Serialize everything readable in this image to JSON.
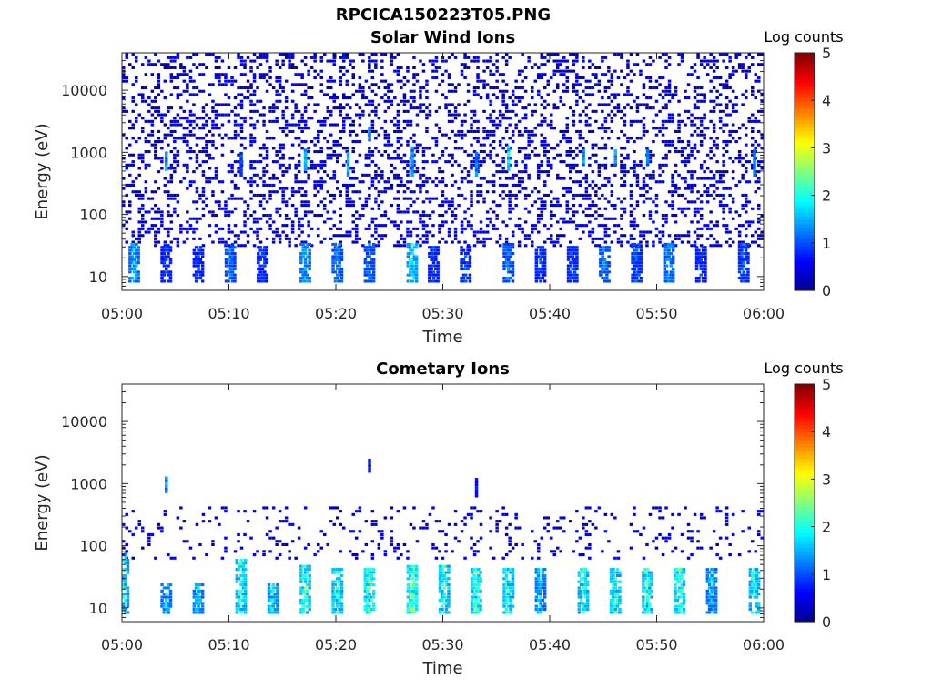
{
  "figure_title": "RPCICA150223T05.PNG",
  "colors": {
    "colormap": [
      "#00008f",
      "#0000ff",
      "#0080ff",
      "#00ffff",
      "#80ff80",
      "#ffff00",
      "#ff8000",
      "#ff0000",
      "#800000"
    ],
    "axes": "#262626",
    "background": "#ffffff"
  },
  "chart_data": [
    {
      "type": "heatmap",
      "title": "Solar Wind Ions",
      "xlabel": "Time",
      "ylabel": "Energy (eV)",
      "x_ticks": [
        "05:00",
        "05:10",
        "05:20",
        "05:30",
        "05:40",
        "05:50",
        "06:00"
      ],
      "xlim": [
        "05:00",
        "06:00"
      ],
      "y_scale": "log",
      "y_ticks": [
        10,
        100,
        1000,
        10000
      ],
      "y_tick_labels": [
        "10",
        "100",
        "1000",
        "10000"
      ],
      "ylim": [
        6,
        40000
      ],
      "colorbar": {
        "label": "Log counts",
        "range": [
          0,
          5
        ],
        "ticks": [
          "0",
          "1",
          "2",
          "3",
          "4",
          "5"
        ]
      },
      "low_energy_bursts": [
        {
          "t": "05:01",
          "e": [
            8,
            35
          ],
          "level": 1.6
        },
        {
          "t": "05:04",
          "e": [
            8,
            30
          ],
          "level": 0.8
        },
        {
          "t": "05:07",
          "e": [
            8,
            30
          ],
          "level": 0.8
        },
        {
          "t": "05:10",
          "e": [
            8,
            35
          ],
          "level": 1.2
        },
        {
          "t": "05:13",
          "e": [
            8,
            30
          ],
          "level": 0.8
        },
        {
          "t": "05:17",
          "e": [
            8,
            35
          ],
          "level": 1.6
        },
        {
          "t": "05:20",
          "e": [
            8,
            35
          ],
          "level": 1.3
        },
        {
          "t": "05:23",
          "e": [
            8,
            35
          ],
          "level": 1.2
        },
        {
          "t": "05:27",
          "e": [
            8,
            35
          ],
          "level": 2.0
        },
        {
          "t": "05:29",
          "e": [
            8,
            30
          ],
          "level": 0.8
        },
        {
          "t": "05:32",
          "e": [
            8,
            30
          ],
          "level": 0.9
        },
        {
          "t": "05:36",
          "e": [
            8,
            35
          ],
          "level": 1.2
        },
        {
          "t": "05:39",
          "e": [
            8,
            30
          ],
          "level": 0.8
        },
        {
          "t": "05:42",
          "e": [
            8,
            30
          ],
          "level": 0.9
        },
        {
          "t": "05:45",
          "e": [
            8,
            30
          ],
          "level": 1.2
        },
        {
          "t": "05:48",
          "e": [
            8,
            35
          ],
          "level": 1.0
        },
        {
          "t": "05:51",
          "e": [
            8,
            35
          ],
          "level": 1.5
        },
        {
          "t": "05:54",
          "e": [
            8,
            30
          ],
          "level": 0.8
        },
        {
          "t": "05:58",
          "e": [
            8,
            35
          ],
          "level": 1.0
        }
      ],
      "high_energy_streaks": [
        {
          "t": "05:04",
          "e": [
            500,
            1000
          ],
          "level": 1.8
        },
        {
          "t": "05:11",
          "e": [
            400,
            1000
          ],
          "level": 1.2
        },
        {
          "t": "05:17",
          "e": [
            500,
            1100
          ],
          "level": 2.0
        },
        {
          "t": "05:21",
          "e": [
            400,
            1000
          ],
          "level": 1.7
        },
        {
          "t": "05:23",
          "e": [
            1500,
            2500
          ],
          "level": 1.5
        },
        {
          "t": "05:27",
          "e": [
            400,
            1200
          ],
          "level": 1.6
        },
        {
          "t": "05:33",
          "e": [
            400,
            1000
          ],
          "level": 1.5
        },
        {
          "t": "05:36",
          "e": [
            500,
            1200
          ],
          "level": 2.1
        },
        {
          "t": "05:43",
          "e": [
            600,
            1100
          ],
          "level": 1.6
        },
        {
          "t": "05:46",
          "e": [
            600,
            1100
          ],
          "level": 1.6
        },
        {
          "t": "05:49",
          "e": [
            600,
            1100
          ],
          "level": 1.4
        },
        {
          "t": "05:59",
          "e": [
            400,
            1100
          ],
          "level": 1.6
        }
      ],
      "background": {
        "e": [
          30,
          40000
        ],
        "fill": 0.3,
        "level": 0.1
      }
    },
    {
      "type": "heatmap",
      "title": "Cometary Ions",
      "xlabel": "Time",
      "ylabel": "Energy (eV)",
      "x_ticks": [
        "05:00",
        "05:10",
        "05:20",
        "05:30",
        "05:40",
        "05:50",
        "06:00"
      ],
      "xlim": [
        "05:00",
        "06:00"
      ],
      "y_scale": "log",
      "y_ticks": [
        10,
        100,
        1000,
        10000
      ],
      "y_tick_labels": [
        "10",
        "100",
        "1000",
        "10000"
      ],
      "ylim": [
        6,
        40000
      ],
      "colorbar": {
        "label": "Log counts",
        "range": [
          0,
          5
        ],
        "ticks": [
          "0",
          "1",
          "2",
          "3",
          "4",
          "5"
        ]
      },
      "low_energy_bursts": [
        {
          "t": "05:00",
          "e": [
            8,
            70
          ],
          "level": 2.0
        },
        {
          "t": "05:04",
          "e": [
            8,
            25
          ],
          "level": 1.6
        },
        {
          "t": "05:07",
          "e": [
            8,
            25
          ],
          "level": 1.6
        },
        {
          "t": "05:11",
          "e": [
            8,
            60
          ],
          "level": 2.3
        },
        {
          "t": "05:14",
          "e": [
            8,
            25
          ],
          "level": 2.0
        },
        {
          "t": "05:17",
          "e": [
            8,
            45
          ],
          "level": 2.4
        },
        {
          "t": "05:20",
          "e": [
            8,
            40
          ],
          "level": 2.3
        },
        {
          "t": "05:23",
          "e": [
            8,
            40
          ],
          "level": 2.6
        },
        {
          "t": "05:27",
          "e": [
            8,
            45
          ],
          "level": 2.8
        },
        {
          "t": "05:30",
          "e": [
            8,
            45
          ],
          "level": 2.3
        },
        {
          "t": "05:33",
          "e": [
            8,
            40
          ],
          "level": 2.4
        },
        {
          "t": "05:36",
          "e": [
            8,
            40
          ],
          "level": 2.3
        },
        {
          "t": "05:39",
          "e": [
            8,
            40
          ],
          "level": 1.6
        },
        {
          "t": "05:43",
          "e": [
            8,
            40
          ],
          "level": 2.3
        },
        {
          "t": "05:46",
          "e": [
            8,
            40
          ],
          "level": 2.3
        },
        {
          "t": "05:49",
          "e": [
            8,
            40
          ],
          "level": 2.3
        },
        {
          "t": "05:52",
          "e": [
            8,
            40
          ],
          "level": 2.5
        },
        {
          "t": "05:55",
          "e": [
            8,
            40
          ],
          "level": 1.6
        },
        {
          "t": "05:59",
          "e": [
            8,
            40
          ],
          "level": 2.2
        }
      ],
      "high_energy_streaks": [
        {
          "t": "05:04",
          "e": [
            700,
            1200
          ],
          "level": 1.6
        },
        {
          "t": "05:23",
          "e": [
            1500,
            2500
          ],
          "level": 0.8
        },
        {
          "t": "05:33",
          "e": [
            600,
            1200
          ],
          "level": 0.8
        }
      ],
      "background": {
        "e": [
          60,
          400
        ],
        "fill": 0.25,
        "level": 0.1
      }
    }
  ]
}
